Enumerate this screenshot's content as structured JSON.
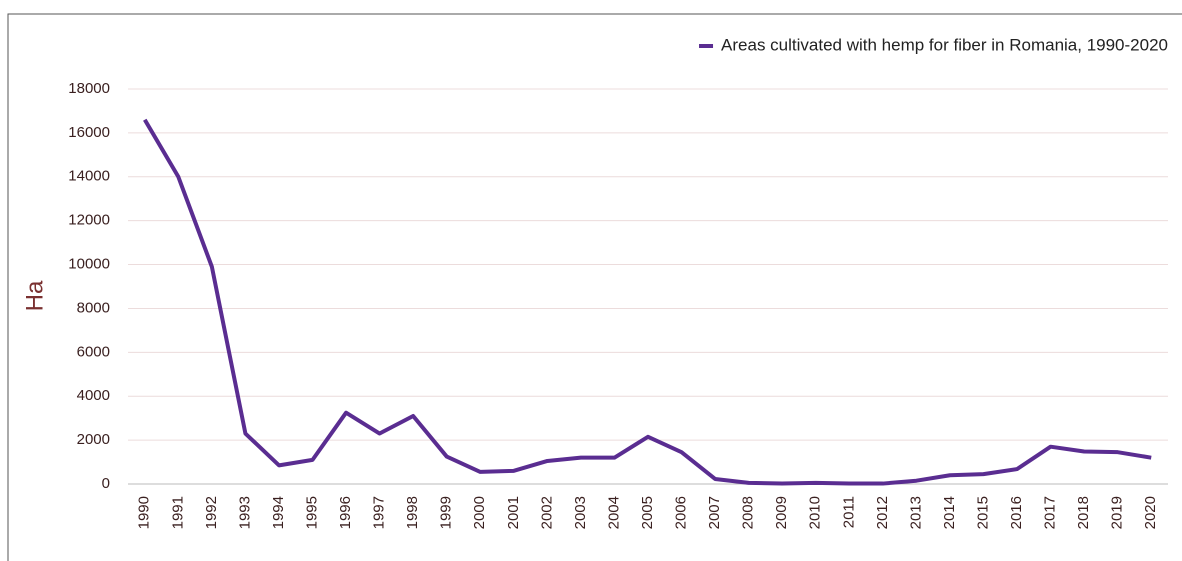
{
  "chart_data": {
    "type": "line",
    "y_label": "Ha",
    "categories": [
      "1990",
      "1991",
      "1992",
      "1993",
      "1994",
      "1995",
      "1996",
      "1997",
      "1998",
      "1999",
      "2000",
      "2001",
      "2002",
      "2003",
      "2004",
      "2005",
      "2006",
      "2007",
      "2008",
      "2009",
      "2010",
      "2011",
      "2012",
      "2013",
      "2014",
      "2015",
      "2016",
      "2017",
      "2018",
      "2019",
      "2020"
    ],
    "series": [
      {
        "name": "Areas cultivated with hemp for fiber in Romania, 1990-2020",
        "color": "#5a2d91",
        "values": [
          16600,
          14000,
          9900,
          2300,
          850,
          1100,
          3250,
          2300,
          3100,
          1250,
          550,
          600,
          1050,
          1200,
          1200,
          2150,
          1450,
          230,
          50,
          20,
          50,
          20,
          20,
          150,
          400,
          450,
          680,
          1700,
          1480,
          1450,
          1200
        ]
      }
    ],
    "ylim": [
      0,
      18000
    ],
    "yticks": [
      0,
      2000,
      4000,
      6000,
      8000,
      10000,
      12000,
      14000,
      16000,
      18000
    ],
    "grid": true,
    "legend": "top-right"
  }
}
